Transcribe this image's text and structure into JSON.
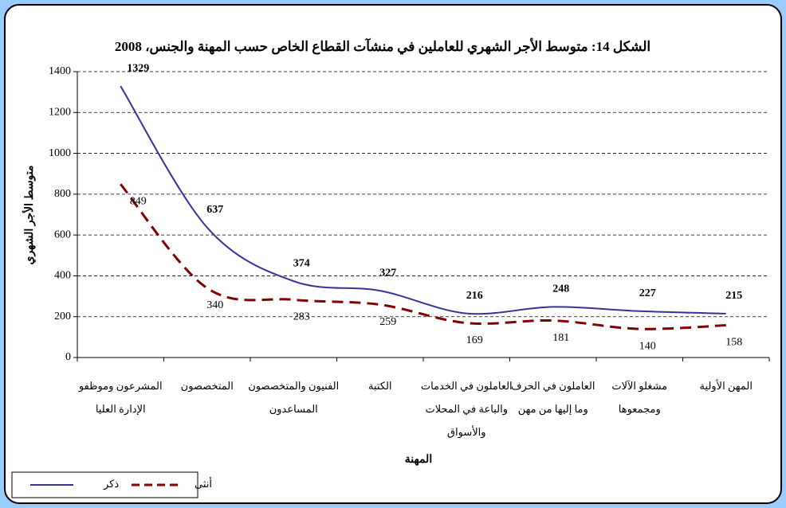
{
  "chart_data": {
    "type": "line",
    "title": "الشكل 14: متوسط الأجر الشهري للعاملين في منشآت القطاع الخاص حسب المهنة والجنس، 2008",
    "y_label": "متوسط الأجر الشهري",
    "x_label": "المهنة",
    "categories": [
      [
        "المشرعون وموظفو",
        "الإدارة العليا"
      ],
      [
        "المتخصصون"
      ],
      [
        "الفنيون والمتخصصون",
        "المساعدون"
      ],
      [
        "الكتبة"
      ],
      [
        "العاملون في الخدمات",
        "والباعة في المحلات",
        "والأسواق"
      ],
      [
        "العاملون في الحرف",
        "وما إليها من مهن"
      ],
      [
        "مشغلو الآلات",
        "ومجمعوها"
      ],
      [
        "المهن الأولية"
      ]
    ],
    "series": [
      {
        "name": "ذكر",
        "color": "#333399",
        "dashed": false,
        "values": [
          1329,
          637,
          374,
          327,
          216,
          248,
          227,
          215
        ]
      },
      {
        "name": "أنثى",
        "color": "#800000",
        "dashed": true,
        "values": [
          849,
          340,
          283,
          259,
          169,
          181,
          140,
          158
        ]
      }
    ],
    "ylim": [
      0,
      1400
    ],
    "yticks": [
      0,
      200,
      400,
      600,
      800,
      1000,
      1200,
      1400
    ],
    "grid": true,
    "legend": "bottom-left"
  }
}
